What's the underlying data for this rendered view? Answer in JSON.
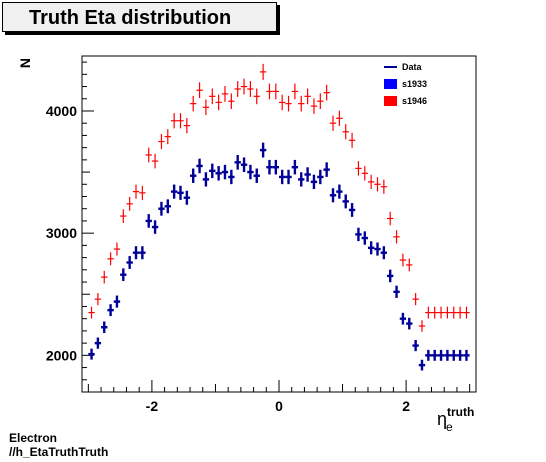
{
  "title": "Truth Eta distribution",
  "footer": {
    "line1": "Electron",
    "line2": "//h_EtaTruthTruth"
  },
  "chart_data": {
    "type": "scatter",
    "title": "Truth Eta distribution",
    "ylabel": "N",
    "xlabel_main": "η",
    "xlabel_sub": "e",
    "xlabel_sup": "truth",
    "xlim": [
      -3.1,
      3.1
    ],
    "ylim": [
      1700,
      4450
    ],
    "xticks": [
      -2,
      0,
      2
    ],
    "xtick_labels": [
      "-2",
      "0",
      "2"
    ],
    "yticks": [
      2000,
      3000,
      4000
    ],
    "ytick_labels": [
      "2000",
      "3000",
      "4000"
    ],
    "legend": {
      "placement": "top-right",
      "entries": [
        {
          "label": "Data",
          "color": "#000099",
          "kind": "line"
        },
        {
          "label": "s1933",
          "color": "#0000ff",
          "kind": "box"
        },
        {
          "label": "s1946",
          "color": "#ff0000",
          "kind": "box"
        }
      ]
    },
    "x": [
      -2.95,
      -2.85,
      -2.75,
      -2.65,
      -2.55,
      -2.45,
      -2.35,
      -2.25,
      -2.15,
      -2.05,
      -1.95,
      -1.85,
      -1.75,
      -1.65,
      -1.55,
      -1.45,
      -1.35,
      -1.25,
      -1.15,
      -1.05,
      -0.95,
      -0.85,
      -0.75,
      -0.65,
      -0.55,
      -0.45,
      -0.35,
      -0.25,
      -0.15,
      -0.05,
      0.05,
      0.15,
      0.25,
      0.35,
      0.45,
      0.55,
      0.65,
      0.75,
      0.85,
      0.95,
      1.05,
      1.15,
      1.25,
      1.35,
      1.45,
      1.55,
      1.65,
      1.75,
      1.85,
      1.95,
      2.05,
      2.15,
      2.25,
      2.35,
      2.45,
      2.55,
      2.65,
      2.75,
      2.85,
      2.95
    ],
    "series": [
      {
        "name": "s1933",
        "color": "#000099",
        "values": [
          2010,
          2100,
          2230,
          2370,
          2440,
          2660,
          2760,
          2840,
          2840,
          3100,
          3050,
          3200,
          3220,
          3340,
          3330,
          3290,
          3470,
          3550,
          3440,
          3510,
          3490,
          3500,
          3460,
          3580,
          3560,
          3500,
          3470,
          3680,
          3540,
          3540,
          3460,
          3460,
          3540,
          3440,
          3480,
          3420,
          3460,
          3520,
          3310,
          3340,
          3260,
          3190,
          2990,
          2960,
          2880,
          2870,
          2840,
          2650,
          2520,
          2300,
          2260,
          2080,
          1920,
          2000,
          2000,
          2000,
          2000,
          2000,
          2000,
          2000
        ]
      },
      {
        "name": "s1946",
        "color": "#ff0000",
        "values": [
          2350,
          2460,
          2640,
          2790,
          2870,
          3140,
          3240,
          3340,
          3330,
          3640,
          3590,
          3750,
          3790,
          3920,
          3920,
          3880,
          4060,
          4170,
          4030,
          4120,
          4070,
          4140,
          4080,
          4180,
          4200,
          4180,
          4120,
          4320,
          4160,
          4160,
          4070,
          4060,
          4160,
          4060,
          4120,
          4040,
          4080,
          4150,
          3900,
          3940,
          3830,
          3760,
          3530,
          3490,
          3420,
          3400,
          3380,
          3120,
          2970,
          2780,
          2740,
          2460,
          2240,
          2350,
          2350,
          2350,
          2350,
          2350,
          2350,
          2350
        ]
      }
    ]
  }
}
